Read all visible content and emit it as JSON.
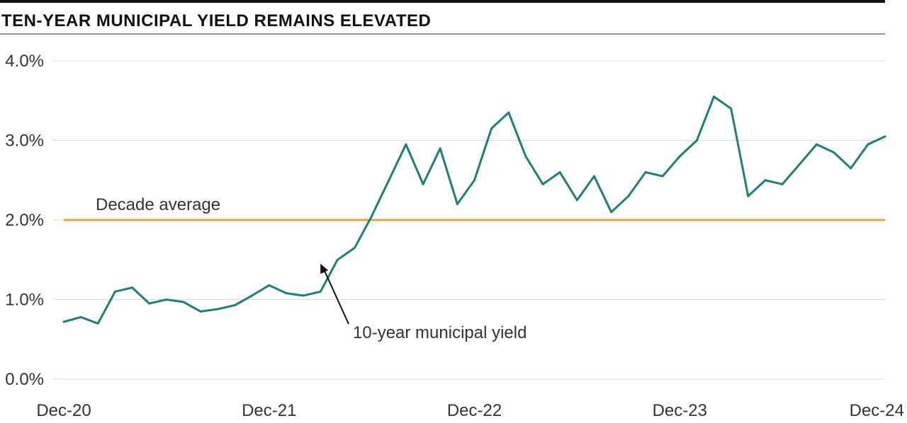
{
  "chart_data": {
    "type": "line",
    "title": "TEN-YEAR MUNICIPAL YIELD REMAINS ELEVATED",
    "xlabel": "",
    "ylabel": "",
    "x_tick_labels": [
      "Dec-20",
      "Dec-21",
      "Dec-22",
      "Dec-23",
      "Dec-24"
    ],
    "y_tick_labels": [
      "0.0%",
      "1.0%",
      "2.0%",
      "3.0%",
      "4.0%"
    ],
    "ylim": [
      0,
      4
    ],
    "xlim": [
      "2020-12",
      "2024-12"
    ],
    "grid": "horizontal",
    "series": [
      {
        "x": [
          "2020-12",
          "2021-01",
          "2021-02",
          "2021-03",
          "2021-04",
          "2021-05",
          "2021-06",
          "2021-07",
          "2021-08",
          "2021-09",
          "2021-10",
          "2021-11",
          "2021-12",
          "2022-01",
          "2022-02",
          "2022-03",
          "2022-04",
          "2022-05",
          "2022-06",
          "2022-07",
          "2022-08",
          "2022-09",
          "2022-10",
          "2022-11",
          "2022-12",
          "2023-01",
          "2023-02",
          "2023-03",
          "2023-04",
          "2023-05",
          "2023-06",
          "2023-07",
          "2023-08",
          "2023-09",
          "2023-10",
          "2023-11",
          "2023-12",
          "2024-01",
          "2024-02",
          "2024-03",
          "2024-04",
          "2024-05",
          "2024-06",
          "2024-07",
          "2024-08",
          "2024-09",
          "2024-10",
          "2024-11",
          "2024-12"
        ],
        "values": [
          0.72,
          0.78,
          0.7,
          1.1,
          1.15,
          0.95,
          1.0,
          0.97,
          0.85,
          0.88,
          0.93,
          1.05,
          1.18,
          1.08,
          1.05,
          1.1,
          1.5,
          1.65,
          2.05,
          2.5,
          2.95,
          2.45,
          2.9,
          2.2,
          2.5,
          3.15,
          3.35,
          2.8,
          2.45,
          2.6,
          2.25,
          2.55,
          2.1,
          2.3,
          2.6,
          2.55,
          2.8,
          3.0,
          3.55,
          3.4,
          2.3,
          2.5,
          2.45,
          2.7,
          2.95,
          2.85,
          2.65,
          2.95,
          3.05
        ],
        "color": "#1f7e79"
      }
    ],
    "annotations": [
      {
        "text": "Decade average",
        "value": 2.0,
        "color": "#e8a33d"
      },
      {
        "text": "10-year municipal yield",
        "x": "2022-03",
        "y": 1.45
      }
    ]
  }
}
